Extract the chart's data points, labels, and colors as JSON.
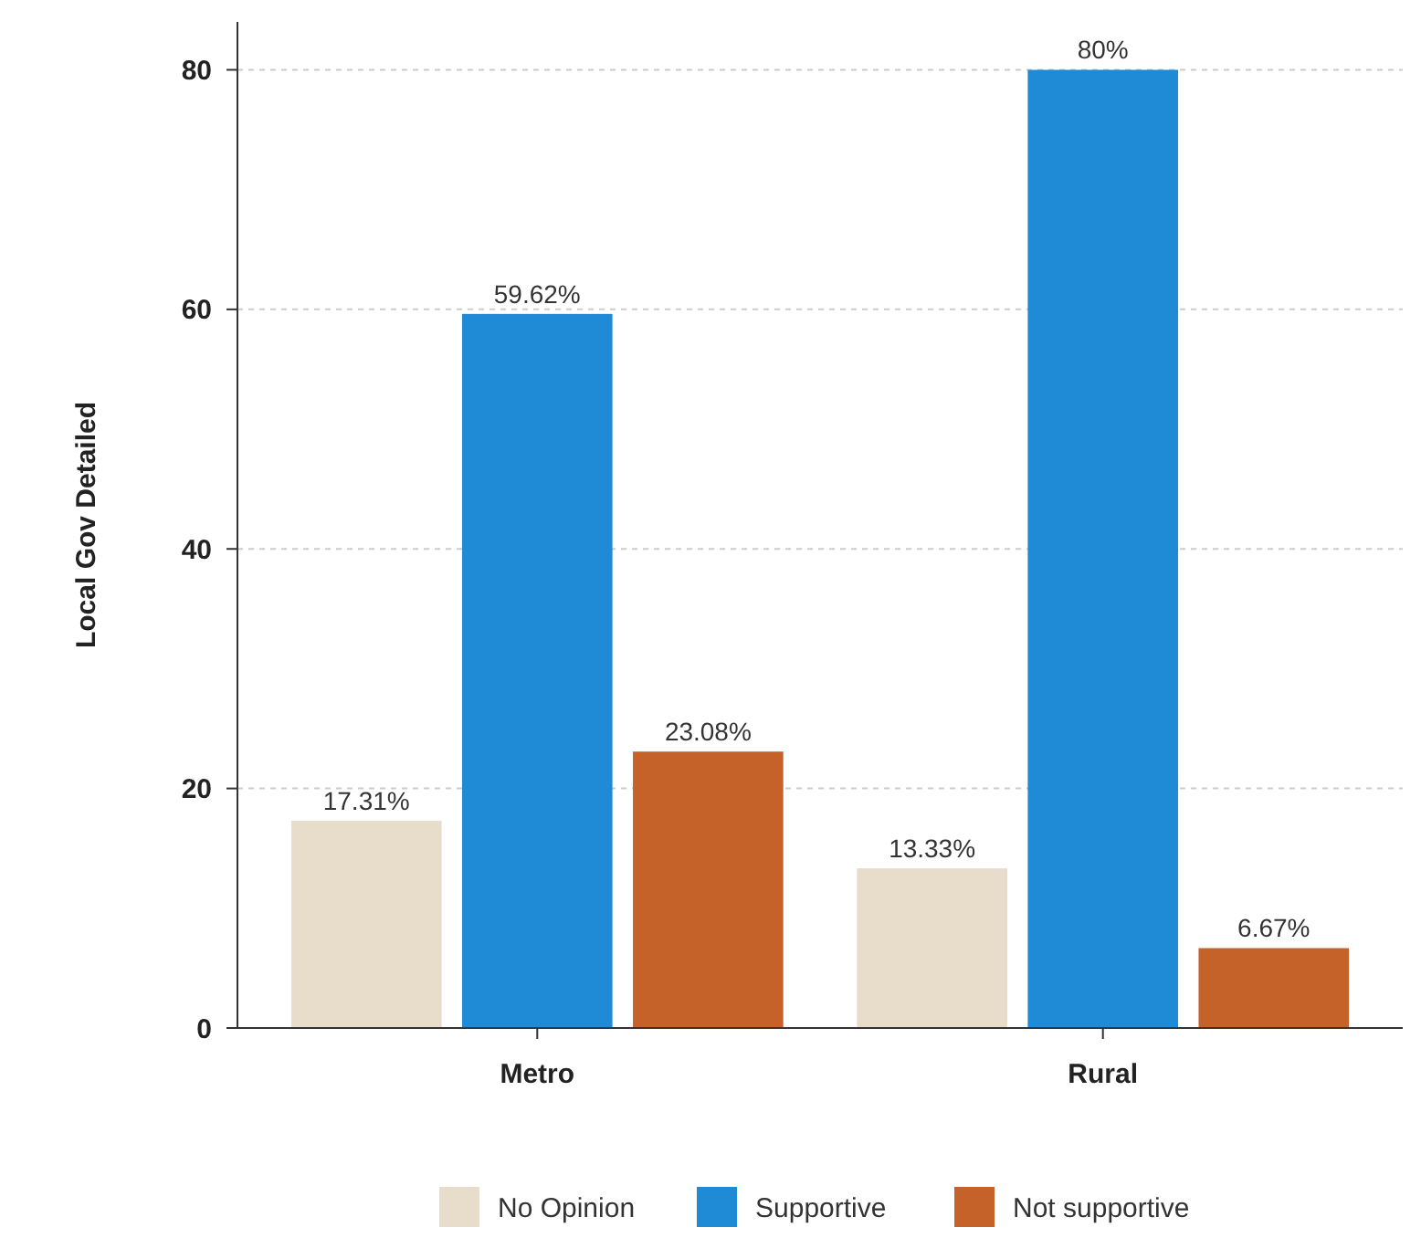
{
  "chart_data": {
    "type": "bar",
    "ylabel": "Local Gov Detailed",
    "categories": [
      "Metro",
      "Rural"
    ],
    "series": [
      {
        "name": "No Opinion",
        "color": "#e8dccb",
        "values": [
          17.31,
          13.33
        ],
        "value_labels": [
          "17.31%",
          "13.33%"
        ]
      },
      {
        "name": "Supportive",
        "color": "#1f8ad6",
        "values": [
          59.62,
          80
        ],
        "value_labels": [
          "59.62%",
          "80%"
        ]
      },
      {
        "name": "Not supportive",
        "color": "#c5622a",
        "values": [
          23.08,
          6.67
        ],
        "value_labels": [
          "23.08%",
          "6.67%"
        ]
      }
    ],
    "ylim": [
      0,
      84
    ],
    "yticks": [
      0,
      20,
      40,
      60,
      80
    ],
    "grid": "y",
    "legend": "bottom"
  }
}
